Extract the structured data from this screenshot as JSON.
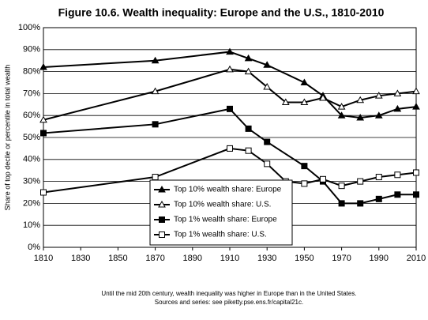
{
  "chart_data": {
    "type": "line",
    "title": "Figure 10.6. Wealth inequality: Europe and the U.S., 1810-2010",
    "y_label": "Share of top decile or percentile in total wealth",
    "notes": [
      "Until the mid 20th century, wealth inequality was higher in Europe than in the United States.",
      "Sources and series: see piketty.pse.ens.fr/capital21c."
    ],
    "xlim": [
      1810,
      2010
    ],
    "xticks": [
      1810,
      1830,
      1850,
      1870,
      1890,
      1910,
      1930,
      1950,
      1970,
      1990,
      2010
    ],
    "ylim": [
      0,
      100
    ],
    "yticks": [
      {
        "value": 0,
        "label": "0%"
      },
      {
        "value": 10,
        "label": "10%"
      },
      {
        "value": 20,
        "label": "20%"
      },
      {
        "value": 30,
        "label": "30%"
      },
      {
        "value": 40,
        "label": "40%"
      },
      {
        "value": 50,
        "label": "50%"
      },
      {
        "value": 60,
        "label": "60%"
      },
      {
        "value": 70,
        "label": "70%"
      },
      {
        "value": 80,
        "label": "80%"
      },
      {
        "value": 90,
        "label": "90%"
      },
      {
        "value": 100,
        "label": "100%"
      }
    ],
    "grid": true,
    "legend": "bottom-center",
    "series": [
      {
        "name": "Top 10% wealth share: Europe",
        "color": "#000000",
        "marker": "triangle",
        "filled": true,
        "x": [
          1810,
          1870,
          1910,
          1920,
          1930,
          1950,
          1960,
          1970,
          1980,
          1990,
          2000,
          2010
        ],
        "values": [
          82,
          85,
          89,
          86,
          83,
          75,
          69,
          60,
          59,
          60,
          63,
          64
        ]
      },
      {
        "name": "Top 10% wealth share: U.S.",
        "color": "#000000",
        "marker": "triangle",
        "filled": false,
        "x": [
          1810,
          1870,
          1910,
          1920,
          1930,
          1940,
          1950,
          1960,
          1970,
          1980,
          1990,
          2000,
          2010
        ],
        "values": [
          58,
          71,
          81,
          80,
          73,
          66,
          66,
          68,
          64,
          67,
          69,
          70,
          71
        ]
      },
      {
        "name": "Top 1% wealth share: Europe",
        "color": "#000000",
        "marker": "square",
        "filled": true,
        "x": [
          1810,
          1870,
          1910,
          1920,
          1930,
          1950,
          1960,
          1970,
          1980,
          1990,
          2000,
          2010
        ],
        "values": [
          52,
          56,
          63,
          54,
          48,
          37,
          30,
          20,
          20,
          22,
          24,
          24
        ]
      },
      {
        "name": "Top 1% wealth share: U.S.",
        "color": "#000000",
        "marker": "square",
        "filled": false,
        "x": [
          1810,
          1870,
          1910,
          1920,
          1930,
          1940,
          1950,
          1960,
          1970,
          1980,
          1990,
          2000,
          2010
        ],
        "values": [
          25,
          32,
          45,
          44,
          38,
          30,
          29,
          31,
          28,
          30,
          32,
          33,
          34
        ]
      }
    ]
  }
}
